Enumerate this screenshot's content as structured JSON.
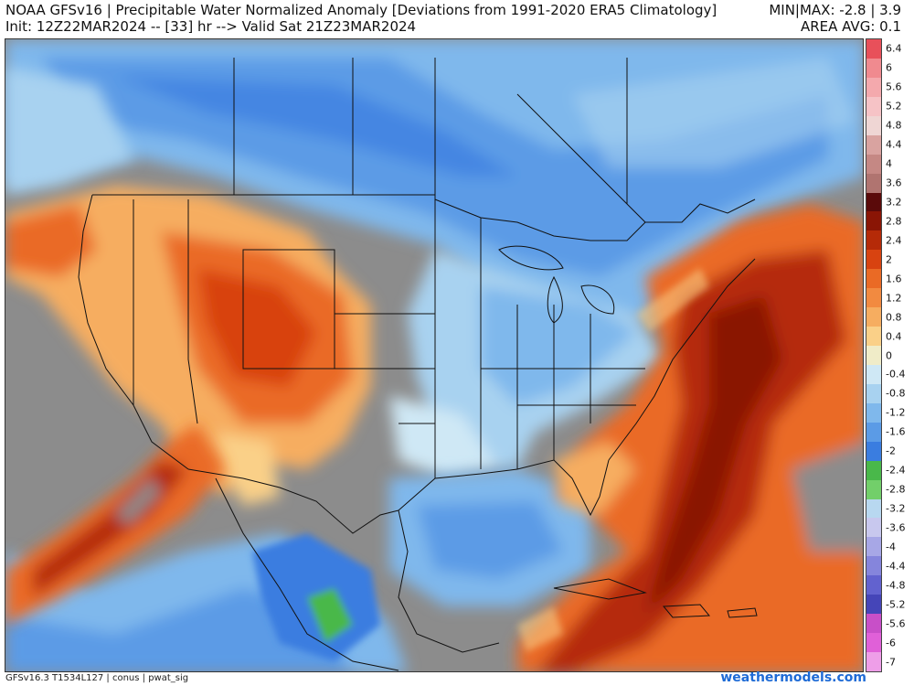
{
  "header": {
    "title": "NOAA GFSv16 | Precipitable Water Normalized Anomaly [Deviations from 1991-2020 ERA5 Climatology]",
    "subtitle": "Init: 12Z22MAR2024 -- [33] hr --> Valid Sat 21Z23MAR2024",
    "stats": "MIN|MAX: -2.8 | 3.9",
    "area_avg": "AREA AVG: 0.1"
  },
  "footer": {
    "model_info": "GFSv16.3 T1534L127 | conus | pwat_sig",
    "brand": "weathermodels.com"
  },
  "colors": {
    "background_gray": "#8c8c8c",
    "brand_blue": "#1e6bd6",
    "border_lines": "#111111"
  },
  "colorbar": {
    "labels": [
      "6.4",
      "6",
      "5.6",
      "5.2",
      "4.8",
      "4.4",
      "4",
      "3.6",
      "3.2",
      "2.8",
      "2.4",
      "2",
      "1.6",
      "1.2",
      "0.8",
      "0.4",
      "0",
      "-0.4",
      "-0.8",
      "-1.2",
      "-1.6",
      "-2",
      "-2.4",
      "-2.8",
      "-3.2",
      "-3.6",
      "-4",
      "-4.4",
      "-4.8",
      "-5.2",
      "-5.6",
      "-6",
      "-7"
    ],
    "colors": [
      "#e8505a",
      "#f08a8f",
      "#f4a9ad",
      "#f6c3c6",
      "#efd6d4",
      "#d9a3a0",
      "#c58884",
      "#b07470",
      "#5a0a0a",
      "#8a1505",
      "#b52a08",
      "#d84310",
      "#ea6a25",
      "#f28a40",
      "#f6ad60",
      "#fad088",
      "#f0ecc8",
      "#cfe8f5",
      "#a8d2f0",
      "#7fb8ec",
      "#5b9be6",
      "#3a7de0",
      "#49b84a",
      "#72cf6a",
      "#b8d8f0",
      "#c8c8ee",
      "#a7a7e6",
      "#8585dc",
      "#6262cf",
      "#4545b8",
      "#c84fc8",
      "#e060d8",
      "#ee9ee8"
    ]
  },
  "map": {
    "description_regions": [
      "conus",
      "mexico",
      "caribbean",
      "canada"
    ]
  }
}
